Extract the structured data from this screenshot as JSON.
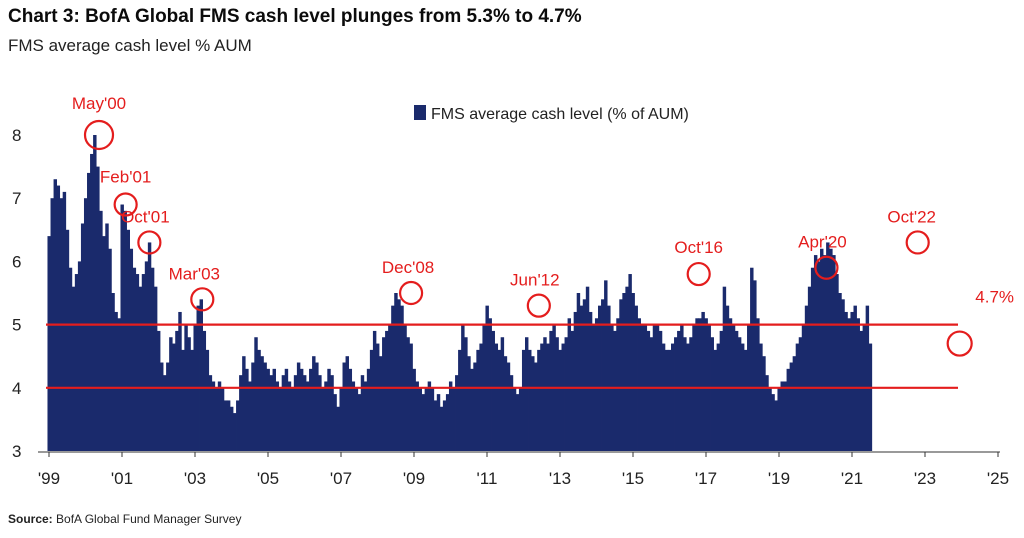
{
  "header": {
    "title": "Chart 3: BofA Global FMS cash level plunges from 5.3% to 4.7%",
    "subtitle": "FMS average cash level % AUM"
  },
  "footer": {
    "source_label": "Source:",
    "source_text": "BofA Global Fund Manager Survey"
  },
  "colors": {
    "bar": "#1a2a6c",
    "reference_line": "#e41d1d",
    "annotation": "#e41d1d"
  },
  "chart_data": {
    "type": "bar",
    "legend": {
      "label": "FMS average cash level (% of AUM)",
      "position": "top-center"
    },
    "x_tick_labels": [
      "'99",
      "'01",
      "'03",
      "'05",
      "'07",
      "'09",
      "'11",
      "'13",
      "'15",
      "'17",
      "'19",
      "'21",
      "'23",
      "'25"
    ],
    "y_tick_labels": [
      "3",
      "4",
      "5",
      "6",
      "7",
      "8"
    ],
    "ylim": [
      3,
      8.5
    ],
    "xlim": [
      1999.0,
      2025.5
    ],
    "grid": false,
    "reference_lines": [
      {
        "y": 5.0
      },
      {
        "y": 4.0
      }
    ],
    "annotations": [
      {
        "label": "May'00",
        "x": 2000.37,
        "y": 8.0
      },
      {
        "label": "Feb'01",
        "x": 2001.1,
        "y": 6.9
      },
      {
        "label": "Oct'01",
        "x": 2001.75,
        "y": 6.3
      },
      {
        "label": "Mar'03",
        "x": 2003.2,
        "y": 5.4
      },
      {
        "label": "Dec'08",
        "x": 2008.92,
        "y": 5.5
      },
      {
        "label": "Jun'12",
        "x": 2012.42,
        "y": 5.3
      },
      {
        "label": "Oct'16",
        "x": 2016.8,
        "y": 5.8
      },
      {
        "label": "Apr'20",
        "x": 2020.3,
        "y": 5.9
      },
      {
        "label": "Oct'22",
        "x": 2022.8,
        "y": 6.3
      },
      {
        "label": "4.7%",
        "x": 2023.95,
        "y": 4.7
      }
    ],
    "series": [
      {
        "start": 1999.0,
        "step": 0.08333,
        "values": [
          6.4,
          7.0,
          7.3,
          7.2,
          7.0,
          7.1,
          6.5,
          5.9,
          5.6,
          5.8,
          6.0,
          6.6,
          7.0,
          7.4,
          7.7,
          8.0,
          7.5,
          6.8,
          6.4,
          6.6,
          6.2,
          5.5,
          5.2,
          5.1,
          6.9,
          6.8,
          6.5,
          6.2,
          5.9,
          5.8,
          5.6,
          5.8,
          6.0,
          6.3,
          5.9,
          5.6,
          4.9,
          4.4,
          4.2,
          4.4,
          4.8,
          4.7,
          4.9,
          5.2,
          4.6,
          5.0,
          4.8,
          4.6,
          5.0,
          5.3,
          5.4,
          4.9,
          4.6,
          4.2,
          4.1,
          4.0,
          4.1,
          4.0,
          3.8,
          3.8,
          3.7,
          3.6,
          3.8,
          4.2,
          4.5,
          4.3,
          4.1,
          4.4,
          4.8,
          4.6,
          4.5,
          4.4,
          4.3,
          4.2,
          4.3,
          4.1,
          4.0,
          4.2,
          4.3,
          4.1,
          4.0,
          4.2,
          4.4,
          4.3,
          4.2,
          4.1,
          4.3,
          4.5,
          4.4,
          4.2,
          4.0,
          4.1,
          4.3,
          4.2,
          3.9,
          3.7,
          4.0,
          4.4,
          4.5,
          4.3,
          4.1,
          4.0,
          3.9,
          4.2,
          4.1,
          4.3,
          4.6,
          4.9,
          4.7,
          4.5,
          4.8,
          4.9,
          5.0,
          5.3,
          5.5,
          5.4,
          5.3,
          5.0,
          4.8,
          4.7,
          4.3,
          4.1,
          4.0,
          3.9,
          4.0,
          4.1,
          4.0,
          3.8,
          3.9,
          3.7,
          3.8,
          3.9,
          4.1,
          4.0,
          4.2,
          4.6,
          5.0,
          4.8,
          4.5,
          4.3,
          4.4,
          4.6,
          4.7,
          5.0,
          5.3,
          5.1,
          4.9,
          4.7,
          4.6,
          4.8,
          4.5,
          4.4,
          4.2,
          4.0,
          3.9,
          4.0,
          4.6,
          4.8,
          4.6,
          4.5,
          4.4,
          4.6,
          4.7,
          4.8,
          4.7,
          4.9,
          5.0,
          4.8,
          4.6,
          4.7,
          4.8,
          5.1,
          4.9,
          5.2,
          5.5,
          5.3,
          5.4,
          5.6,
          5.2,
          5.0,
          5.1,
          5.3,
          5.4,
          5.7,
          5.3,
          5.0,
          4.9,
          5.1,
          5.4,
          5.5,
          5.6,
          5.8,
          5.5,
          5.3,
          5.1,
          5.0,
          5.0,
          4.9,
          4.8,
          5.0,
          5.0,
          4.9,
          4.7,
          4.6,
          4.6,
          4.7,
          4.8,
          4.9,
          5.0,
          4.8,
          4.7,
          4.8,
          5.0,
          5.1,
          5.1,
          5.2,
          5.1,
          5.0,
          4.8,
          4.6,
          4.7,
          4.9,
          5.6,
          5.3,
          5.1,
          5.0,
          4.9,
          4.8,
          4.7,
          4.6,
          5.0,
          5.9,
          5.7,
          5.1,
          4.7,
          4.5,
          4.2,
          4.0,
          3.9,
          3.8,
          4.0,
          4.1,
          4.1,
          4.3,
          4.4,
          4.5,
          4.7,
          4.8,
          5.0,
          5.3,
          5.6,
          5.9,
          6.1,
          6.0,
          6.2,
          6.1,
          6.3,
          6.2,
          6.1,
          5.8,
          5.5,
          5.4,
          5.2,
          5.1,
          5.2,
          5.3,
          5.1,
          4.9,
          5.0,
          5.3,
          4.7
        ]
      }
    ]
  }
}
